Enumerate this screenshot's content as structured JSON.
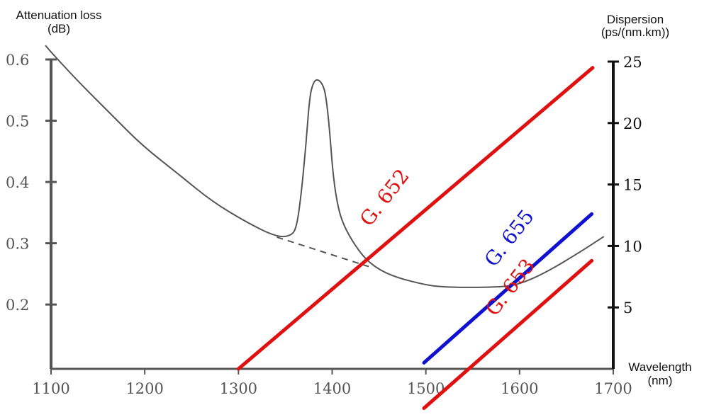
{
  "chart_data": {
    "type": "line",
    "title": "",
    "xlabel": [
      "Wavelength",
      "(nm)"
    ],
    "ylabel_left": [
      "Attenuation loss",
      "(dB)"
    ],
    "ylabel_right": [
      "Dispersion",
      "(ps/(nm.km))"
    ],
    "xlim": [
      1100,
      1700
    ],
    "ylim_left": [
      0.095,
      0.6
    ],
    "ylim_right": [
      0,
      25
    ],
    "x_ticks": [
      "1100",
      "1200",
      "1300",
      "1400",
      "1500",
      "1600",
      "1700"
    ],
    "y_left_ticks": [
      "0.6",
      "0.5",
      "0.4",
      "0.3",
      "0.2"
    ],
    "y_right_ticks": [
      "25",
      "20",
      "15",
      "10",
      "5"
    ],
    "grid": false,
    "colors": {
      "attenuation": "#555555",
      "g652": "#e01010",
      "g653": "#e01010",
      "g655": "#1010d0",
      "right_axis": "#111111",
      "left_axis": "#555555"
    },
    "attenuation": {
      "axis": "left",
      "points": [
        [
          1094,
          0.623
        ],
        [
          1100,
          0.612
        ],
        [
          1129,
          0.564
        ],
        [
          1167,
          0.506
        ],
        [
          1197,
          0.46
        ],
        [
          1235,
          0.414
        ],
        [
          1272,
          0.368
        ],
        [
          1310,
          0.333
        ],
        [
          1341,
          0.31
        ],
        [
          1356,
          0.312
        ],
        [
          1362,
          0.325
        ],
        [
          1367,
          0.38
        ],
        [
          1372,
          0.46
        ],
        [
          1376,
          0.54
        ],
        [
          1380,
          0.563
        ],
        [
          1384,
          0.568
        ],
        [
          1389,
          0.562
        ],
        [
          1393,
          0.545
        ],
        [
          1397,
          0.49
        ],
        [
          1401,
          0.41
        ],
        [
          1406,
          0.36
        ],
        [
          1412,
          0.33
        ],
        [
          1424,
          0.297
        ],
        [
          1439,
          0.268
        ],
        [
          1462,
          0.247
        ],
        [
          1499,
          0.232
        ],
        [
          1522,
          0.228
        ],
        [
          1575,
          0.228
        ],
        [
          1598,
          0.232
        ],
        [
          1628,
          0.252
        ],
        [
          1666,
          0.287
        ],
        [
          1690,
          0.311
        ]
      ],
      "dashed_extrapolation": [
        [
          1341,
          0.31
        ],
        [
          1439,
          0.262
        ]
      ]
    },
    "series": [
      {
        "name": "G. 652",
        "axis": "right",
        "points": [
          [
            1300,
            0
          ],
          [
            1678,
            24.5
          ]
        ]
      },
      {
        "name": "G. 655",
        "axis": "right",
        "points": [
          [
            1498,
            0.5
          ],
          [
            1677,
            12.6
          ]
        ]
      },
      {
        "name": "G. 653",
        "axis": "right",
        "points": [
          [
            1498,
            -3.2
          ],
          [
            1677,
            8.8
          ]
        ]
      }
    ]
  }
}
